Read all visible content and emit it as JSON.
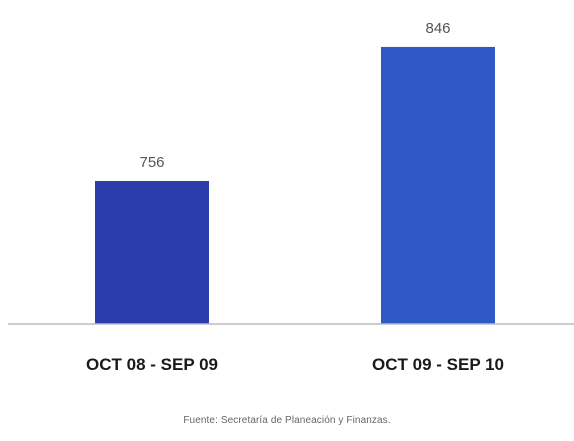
{
  "chart_data": {
    "type": "bar",
    "categories": [
      "OCT 08 - SEP 09",
      "OCT 09 - SEP 10"
    ],
    "values": [
      756,
      846
    ],
    "data_labels": [
      "756",
      "846"
    ],
    "ylim": [
      660,
      852
    ],
    "colors": [
      "#2b3daa",
      "#2f59c4"
    ],
    "grid": false,
    "legend": "none"
  },
  "source": "Fuente: Secretaría de Planeación y Finanzas."
}
